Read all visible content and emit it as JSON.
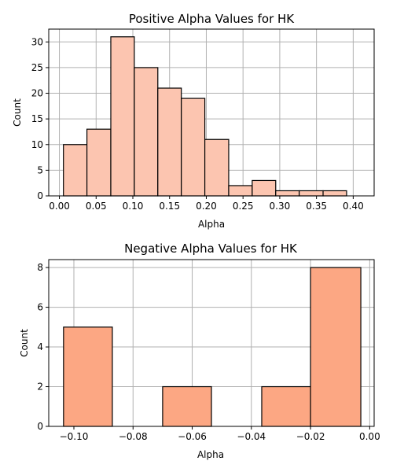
{
  "chart_data": [
    {
      "type": "bar",
      "title": "Positive Alpha Values for HK",
      "xlabel": "Alpha",
      "ylabel": "Count",
      "color": "#fcc5b0",
      "bins": [
        {
          "start": 0.0055,
          "end": 0.0375,
          "value": 10
        },
        {
          "start": 0.0375,
          "end": 0.07,
          "value": 13
        },
        {
          "start": 0.07,
          "end": 0.102,
          "value": 31
        },
        {
          "start": 0.102,
          "end": 0.134,
          "value": 25
        },
        {
          "start": 0.134,
          "end": 0.166,
          "value": 21
        },
        {
          "start": 0.166,
          "end": 0.198,
          "value": 19
        },
        {
          "start": 0.198,
          "end": 0.2305,
          "value": 11
        },
        {
          "start": 0.2305,
          "end": 0.2625,
          "value": 2
        },
        {
          "start": 0.2625,
          "end": 0.2945,
          "value": 3
        },
        {
          "start": 0.2945,
          "end": 0.3265,
          "value": 1
        },
        {
          "start": 0.3265,
          "end": 0.359,
          "value": 1
        },
        {
          "start": 0.359,
          "end": 0.391,
          "value": 1
        }
      ],
      "xlim": [
        -0.0145,
        0.4285
      ],
      "ylim": [
        0,
        32.5
      ],
      "xticks": [
        "0.00",
        "0.05",
        "0.10",
        "0.15",
        "0.20",
        "0.25",
        "0.30",
        "0.35",
        "0.40"
      ],
      "yticks": [
        "0",
        "5",
        "10",
        "15",
        "20",
        "25",
        "30"
      ],
      "grid": true
    },
    {
      "type": "bar",
      "title": "Negative Alpha Values for HK",
      "xlabel": "Alpha",
      "ylabel": "Count",
      "color": "#fca783",
      "bins": [
        {
          "start": -0.1035,
          "end": -0.087,
          "value": 5
        },
        {
          "start": -0.087,
          "end": -0.07,
          "value": 0
        },
        {
          "start": -0.07,
          "end": -0.0535,
          "value": 2
        },
        {
          "start": -0.0535,
          "end": -0.0365,
          "value": 0
        },
        {
          "start": -0.0365,
          "end": -0.02,
          "value": 2
        },
        {
          "start": -0.02,
          "end": -0.003,
          "value": 8
        }
      ],
      "xlim": [
        -0.1085,
        0.0015
      ],
      "ylim": [
        0,
        8.4
      ],
      "xticks": [
        "−0.10",
        "−0.08",
        "−0.06",
        "−0.04",
        "−0.02",
        "0.00"
      ],
      "yticks": [
        "0",
        "2",
        "4",
        "6",
        "8"
      ],
      "grid": true
    }
  ]
}
